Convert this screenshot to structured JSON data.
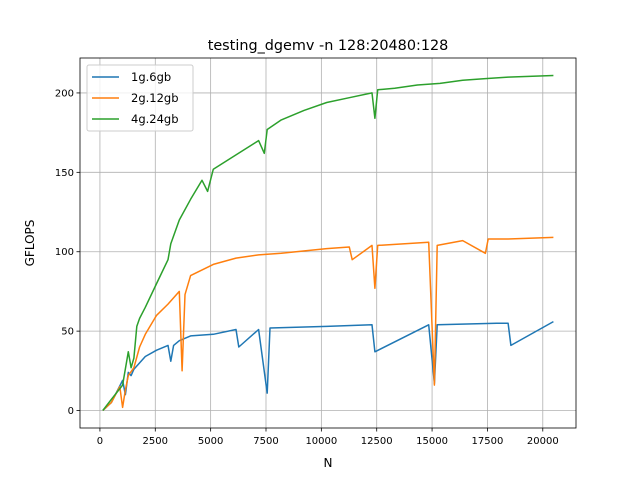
{
  "chart_data": {
    "type": "line",
    "title": "testing_dgemv -n 128:20480:128",
    "xlabel": "N",
    "ylabel": "GFLOPS",
    "xlim": [
      -900,
      21500
    ],
    "ylim": [
      -11,
      222
    ],
    "xticks": [
      0,
      2500,
      5000,
      7500,
      10000,
      12500,
      15000,
      17500,
      20000
    ],
    "yticks": [
      0,
      50,
      100,
      150,
      200
    ],
    "grid": true,
    "legend_position": "upper left",
    "series": [
      {
        "name": "1g.6gb",
        "color": "#1f77b4",
        "x": [
          128,
          512,
          1024,
          1152,
          1280,
          1408,
          1536,
          2048,
          2560,
          3072,
          3200,
          3328,
          3584,
          4096,
          5120,
          6144,
          6272,
          7168,
          7552,
          7680,
          10240,
          12288,
          12416,
          14848,
          15104,
          15232,
          17920,
          18432,
          18560,
          20480
        ],
        "y": [
          0,
          5,
          19,
          10,
          24,
          22,
          26,
          34,
          38,
          41,
          31,
          41,
          44,
          47,
          48,
          51,
          40,
          51,
          11,
          52,
          53,
          54,
          37,
          54,
          17,
          54,
          55,
          55,
          41,
          56
        ]
      },
      {
        "name": "2g.12gb",
        "color": "#ff7f0e",
        "x": [
          128,
          512,
          896,
          1024,
          1152,
          1280,
          1536,
          1792,
          2048,
          2560,
          3072,
          3584,
          3712,
          3840,
          4096,
          5120,
          6144,
          7168,
          8192,
          10240,
          11264,
          11392,
          12288,
          12416,
          12544,
          14848,
          15104,
          15232,
          16384,
          17408,
          17536,
          18432,
          20480
        ],
        "y": [
          0,
          5,
          15,
          2,
          13,
          22,
          27,
          40,
          48,
          60,
          67,
          75,
          25,
          73,
          85,
          92,
          96,
          98,
          99,
          102,
          103,
          95,
          104,
          77,
          104,
          106,
          16,
          104,
          107,
          99,
          108,
          108,
          109
        ]
      },
      {
        "name": "4g.24gb",
        "color": "#2ca02c",
        "x": [
          128,
          512,
          1024,
          1280,
          1408,
          1536,
          1664,
          1792,
          2048,
          2560,
          3072,
          3200,
          3584,
          4096,
          4608,
          4864,
          5120,
          6144,
          7168,
          7424,
          7552,
          8192,
          9216,
          10240,
          11264,
          12288,
          12416,
          12544,
          13312,
          14336,
          15360,
          16384,
          17408,
          18432,
          20480
        ],
        "y": [
          0,
          7,
          16,
          37,
          27,
          33,
          53,
          58,
          65,
          80,
          95,
          105,
          120,
          133,
          145,
          138,
          152,
          161,
          170,
          162,
          177,
          183,
          189,
          194,
          197,
          200,
          184,
          202,
          203,
          205,
          206,
          208,
          209,
          210,
          211
        ]
      }
    ]
  }
}
